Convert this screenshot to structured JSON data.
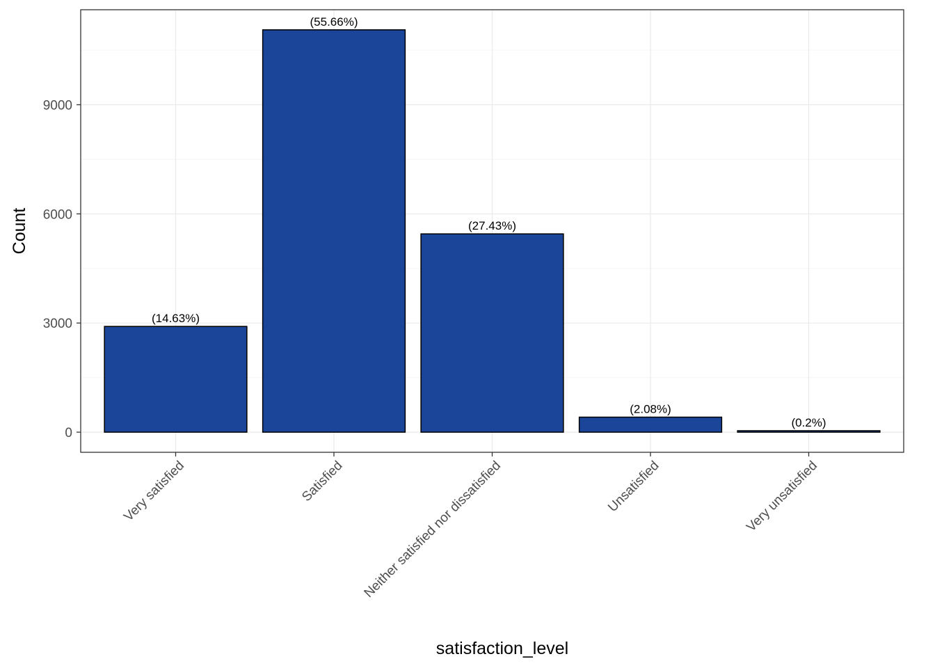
{
  "chart_data": {
    "type": "bar",
    "title": "",
    "xlabel": "satisfaction_level",
    "ylabel": "Count",
    "categories": [
      "Very satisfied",
      "Satisfied",
      "Neither satisfied nor dissatisfied",
      "Unsatisfied",
      "Very unsatisfied"
    ],
    "values": [
      2907,
      11059,
      5450,
      413,
      40
    ],
    "data_labels": [
      "(14.63%)",
      "(55.66%)",
      "(27.43%)",
      "(2.08%)",
      "(0.2%)"
    ],
    "y_ticks": [
      0,
      3000,
      6000,
      9000
    ],
    "y_tick_labels": [
      "0",
      "3000",
      "6000",
      "9000"
    ],
    "ylim": [
      -553,
      11611
    ],
    "grid": true,
    "legend": "none",
    "colors": {
      "bar_fill": "#1a4598",
      "bar_outline": "#000000",
      "grid_major": "#ebebeb",
      "grid_minor": "#f5f5f5",
      "panel_border": "#333333"
    }
  }
}
